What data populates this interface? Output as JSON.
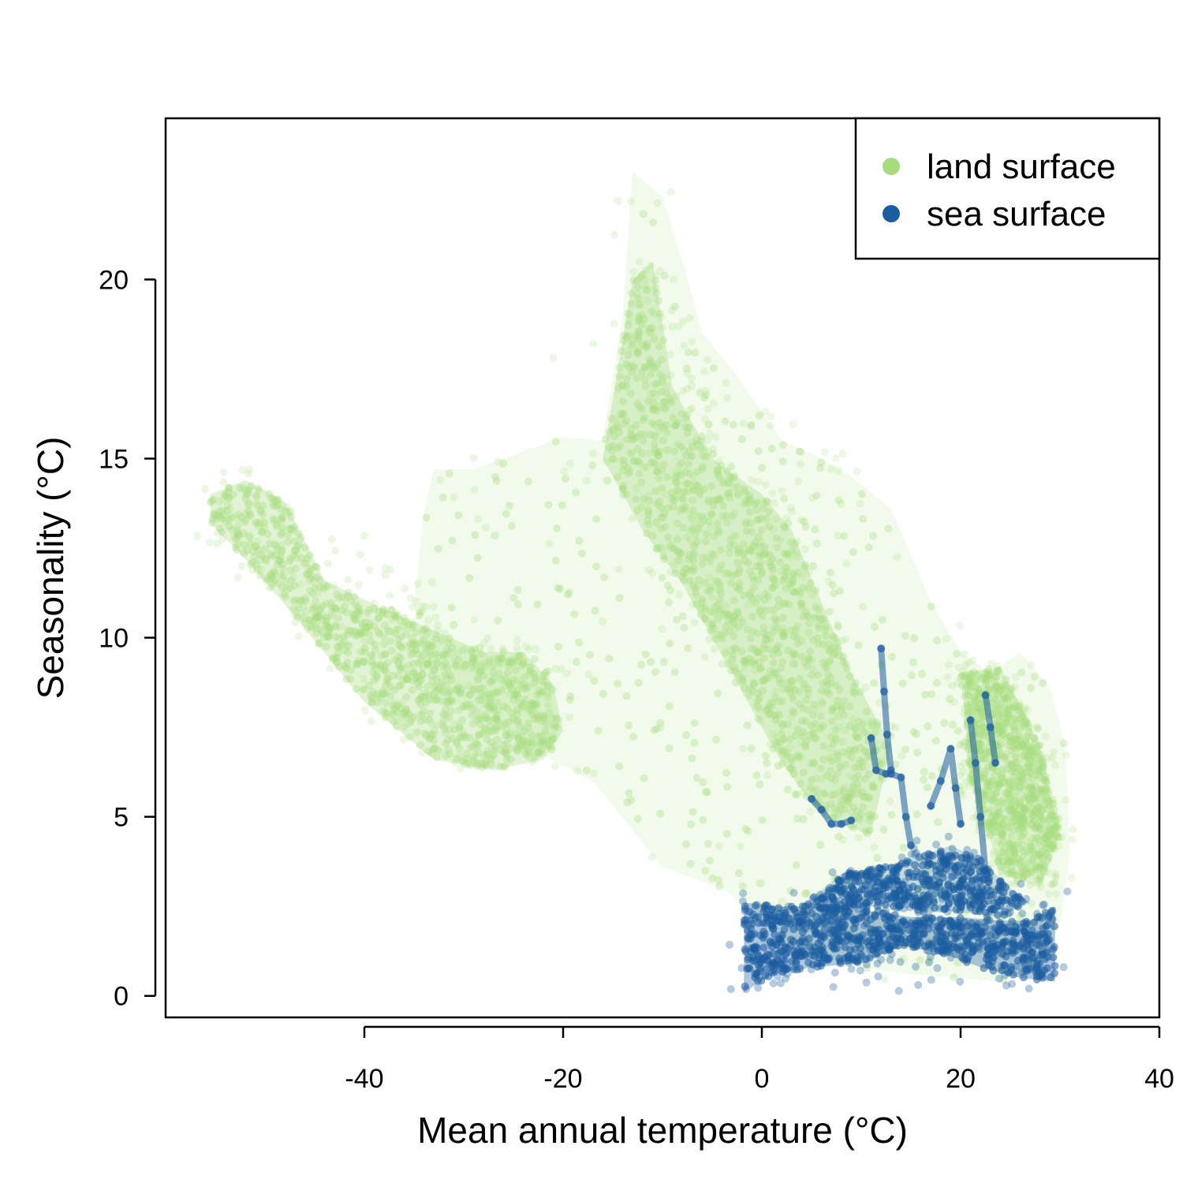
{
  "chart_data": {
    "type": "scatter",
    "title": "",
    "xlabel": "Mean annual temperature (°C)",
    "ylabel": "Seasonality (°C)",
    "xlim": [
      -60,
      40
    ],
    "ylim": [
      -0.6,
      24.5
    ],
    "x_ticks": [
      -40,
      -20,
      0,
      20,
      40
    ],
    "y_ticks": [
      0,
      5,
      10,
      15,
      20
    ],
    "grid": false,
    "legend_position": "top-right",
    "series": [
      {
        "name": "land surface",
        "color": "#a6dc7d",
        "shape": "density-cloud",
        "regions": [
          {
            "outline": [
              [
                -55.5,
                14.0
              ],
              [
                -52,
                14.4
              ],
              [
                -48,
                13.8
              ],
              [
                -44,
                11.6
              ],
              [
                -38,
                10.8
              ],
              [
                -33,
                10.2
              ],
              [
                -28,
                9.6
              ],
              [
                -24,
                9.6
              ],
              [
                -21,
                8.7
              ],
              [
                -20,
                7.4
              ],
              [
                -22,
                6.6
              ],
              [
                -27,
                6.3
              ],
              [
                -33,
                6.6
              ],
              [
                -40,
                8.2
              ],
              [
                -47,
                10.6
              ],
              [
                -52,
                12.2
              ],
              [
                -55.5,
                13.2
              ]
            ],
            "density": 0.95
          },
          {
            "outline": [
              [
                -33,
                14.7
              ],
              [
                -29,
                14.7
              ],
              [
                -25,
                15.1
              ],
              [
                -20,
                15.6
              ],
              [
                -16,
                15.5
              ],
              [
                -14,
                19.0
              ],
              [
                -13,
                23.0
              ],
              [
                -10,
                22.3
              ],
              [
                -8,
                20.5
              ],
              [
                -6,
                18.5
              ],
              [
                -3,
                17.5
              ],
              [
                2,
                15.5
              ],
              [
                6,
                15.0
              ],
              [
                9,
                14.5
              ],
              [
                13,
                13.6
              ],
              [
                17,
                11.0
              ],
              [
                20,
                9.6
              ],
              [
                23,
                9.0
              ],
              [
                26,
                9.6
              ],
              [
                29,
                8.6
              ],
              [
                30.5,
                7.0
              ],
              [
                31,
                4.0
              ],
              [
                30,
                2.0
              ],
              [
                28,
                0.7
              ],
              [
                24,
                0.4
              ],
              [
                20,
                0.5
              ],
              [
                15,
                0.6
              ],
              [
                10,
                0.8
              ],
              [
                3,
                1.3
              ],
              [
                0,
                2.2
              ],
              [
                -4,
                3.0
              ],
              [
                -10,
                3.6
              ],
              [
                -17,
                6.0
              ],
              [
                -24,
                7.0
              ],
              [
                -30,
                8.0
              ],
              [
                -34,
                9.2
              ],
              [
                -35,
                11.0
              ],
              [
                -34,
                13.5
              ]
            ],
            "density": 0.45
          },
          {
            "outline": [
              [
                -16,
                15.0
              ],
              [
                -13,
                20.0
              ],
              [
                -11,
                20.5
              ],
              [
                -9,
                17.0
              ],
              [
                -5,
                15.0
              ],
              [
                0,
                14.0
              ],
              [
                3,
                13.0
              ],
              [
                6,
                11.0
              ],
              [
                9,
                9.0
              ],
              [
                13,
                7.0
              ],
              [
                11,
                4.5
              ],
              [
                6,
                5.0
              ],
              [
                2,
                6.5
              ],
              [
                -3,
                9.0
              ],
              [
                -8,
                11.5
              ],
              [
                -12,
                13.0
              ]
            ],
            "density": 0.95
          },
          {
            "outline": [
              [
                20,
                9.0
              ],
              [
                24,
                9.2
              ],
              [
                28,
                7.0
              ],
              [
                30,
                4.5
              ],
              [
                28,
                3.0
              ],
              [
                24,
                3.5
              ],
              [
                21,
                6.0
              ]
            ],
            "density": 0.8
          }
        ]
      },
      {
        "name": "sea surface",
        "color": "#1b5da1",
        "shape": "density-cloud",
        "regions": [
          {
            "outline": [
              [
                -1.8,
                2.6
              ],
              [
                2,
                2.5
              ],
              [
                6,
                2.5
              ],
              [
                10,
                2.4
              ],
              [
                15,
                2.2
              ],
              [
                20,
                2.2
              ],
              [
                24,
                2.1
              ],
              [
                27,
                2.1
              ],
              [
                29.5,
                2.5
              ],
              [
                29.5,
                0.4
              ],
              [
                26,
                0.5
              ],
              [
                22,
                0.8
              ],
              [
                18,
                1.2
              ],
              [
                14,
                1.4
              ],
              [
                10,
                0.9
              ],
              [
                5,
                0.8
              ],
              [
                1,
                0.6
              ],
              [
                -1.8,
                0.1
              ]
            ],
            "density": 1.0
          },
          {
            "outline": [
              [
                4,
                2.5
              ],
              [
                8,
                3.4
              ],
              [
                12,
                3.6
              ],
              [
                16,
                3.9
              ],
              [
                19,
                4.2
              ],
              [
                22,
                3.8
              ],
              [
                25,
                3.0
              ],
              [
                27,
                2.6
              ],
              [
                24,
                2.2
              ],
              [
                18,
                2.4
              ],
              [
                12,
                2.5
              ],
              [
                7,
                2.4
              ]
            ],
            "density": 0.6
          }
        ],
        "trails": [
          [
            [
              11,
              7.2
            ],
            [
              11.5,
              6.3
            ],
            [
              12.5,
              6.2
            ],
            [
              13,
              6.2
            ],
            [
              14,
              6.1
            ],
            [
              14.5,
              5.0
            ],
            [
              15,
              4.2
            ]
          ],
          [
            [
              12,
              9.7
            ],
            [
              12.3,
              8.5
            ],
            [
              12.6,
              7.3
            ],
            [
              13,
              6.3
            ]
          ],
          [
            [
              5,
              5.5
            ],
            [
              6,
              5.2
            ],
            [
              7,
              4.8
            ],
            [
              8,
              4.8
            ],
            [
              9,
              4.9
            ]
          ],
          [
            [
              17,
              5.3
            ],
            [
              18,
              6.0
            ],
            [
              19,
              6.9
            ],
            [
              19.5,
              5.8
            ],
            [
              20,
              4.8
            ]
          ],
          [
            [
              21,
              7.7
            ],
            [
              21.5,
              6.5
            ],
            [
              22,
              5.0
            ],
            [
              22.5,
              3.5
            ]
          ],
          [
            [
              22.5,
              8.4
            ],
            [
              23,
              7.5
            ],
            [
              23.5,
              6.5
            ]
          ]
        ]
      }
    ]
  }
}
